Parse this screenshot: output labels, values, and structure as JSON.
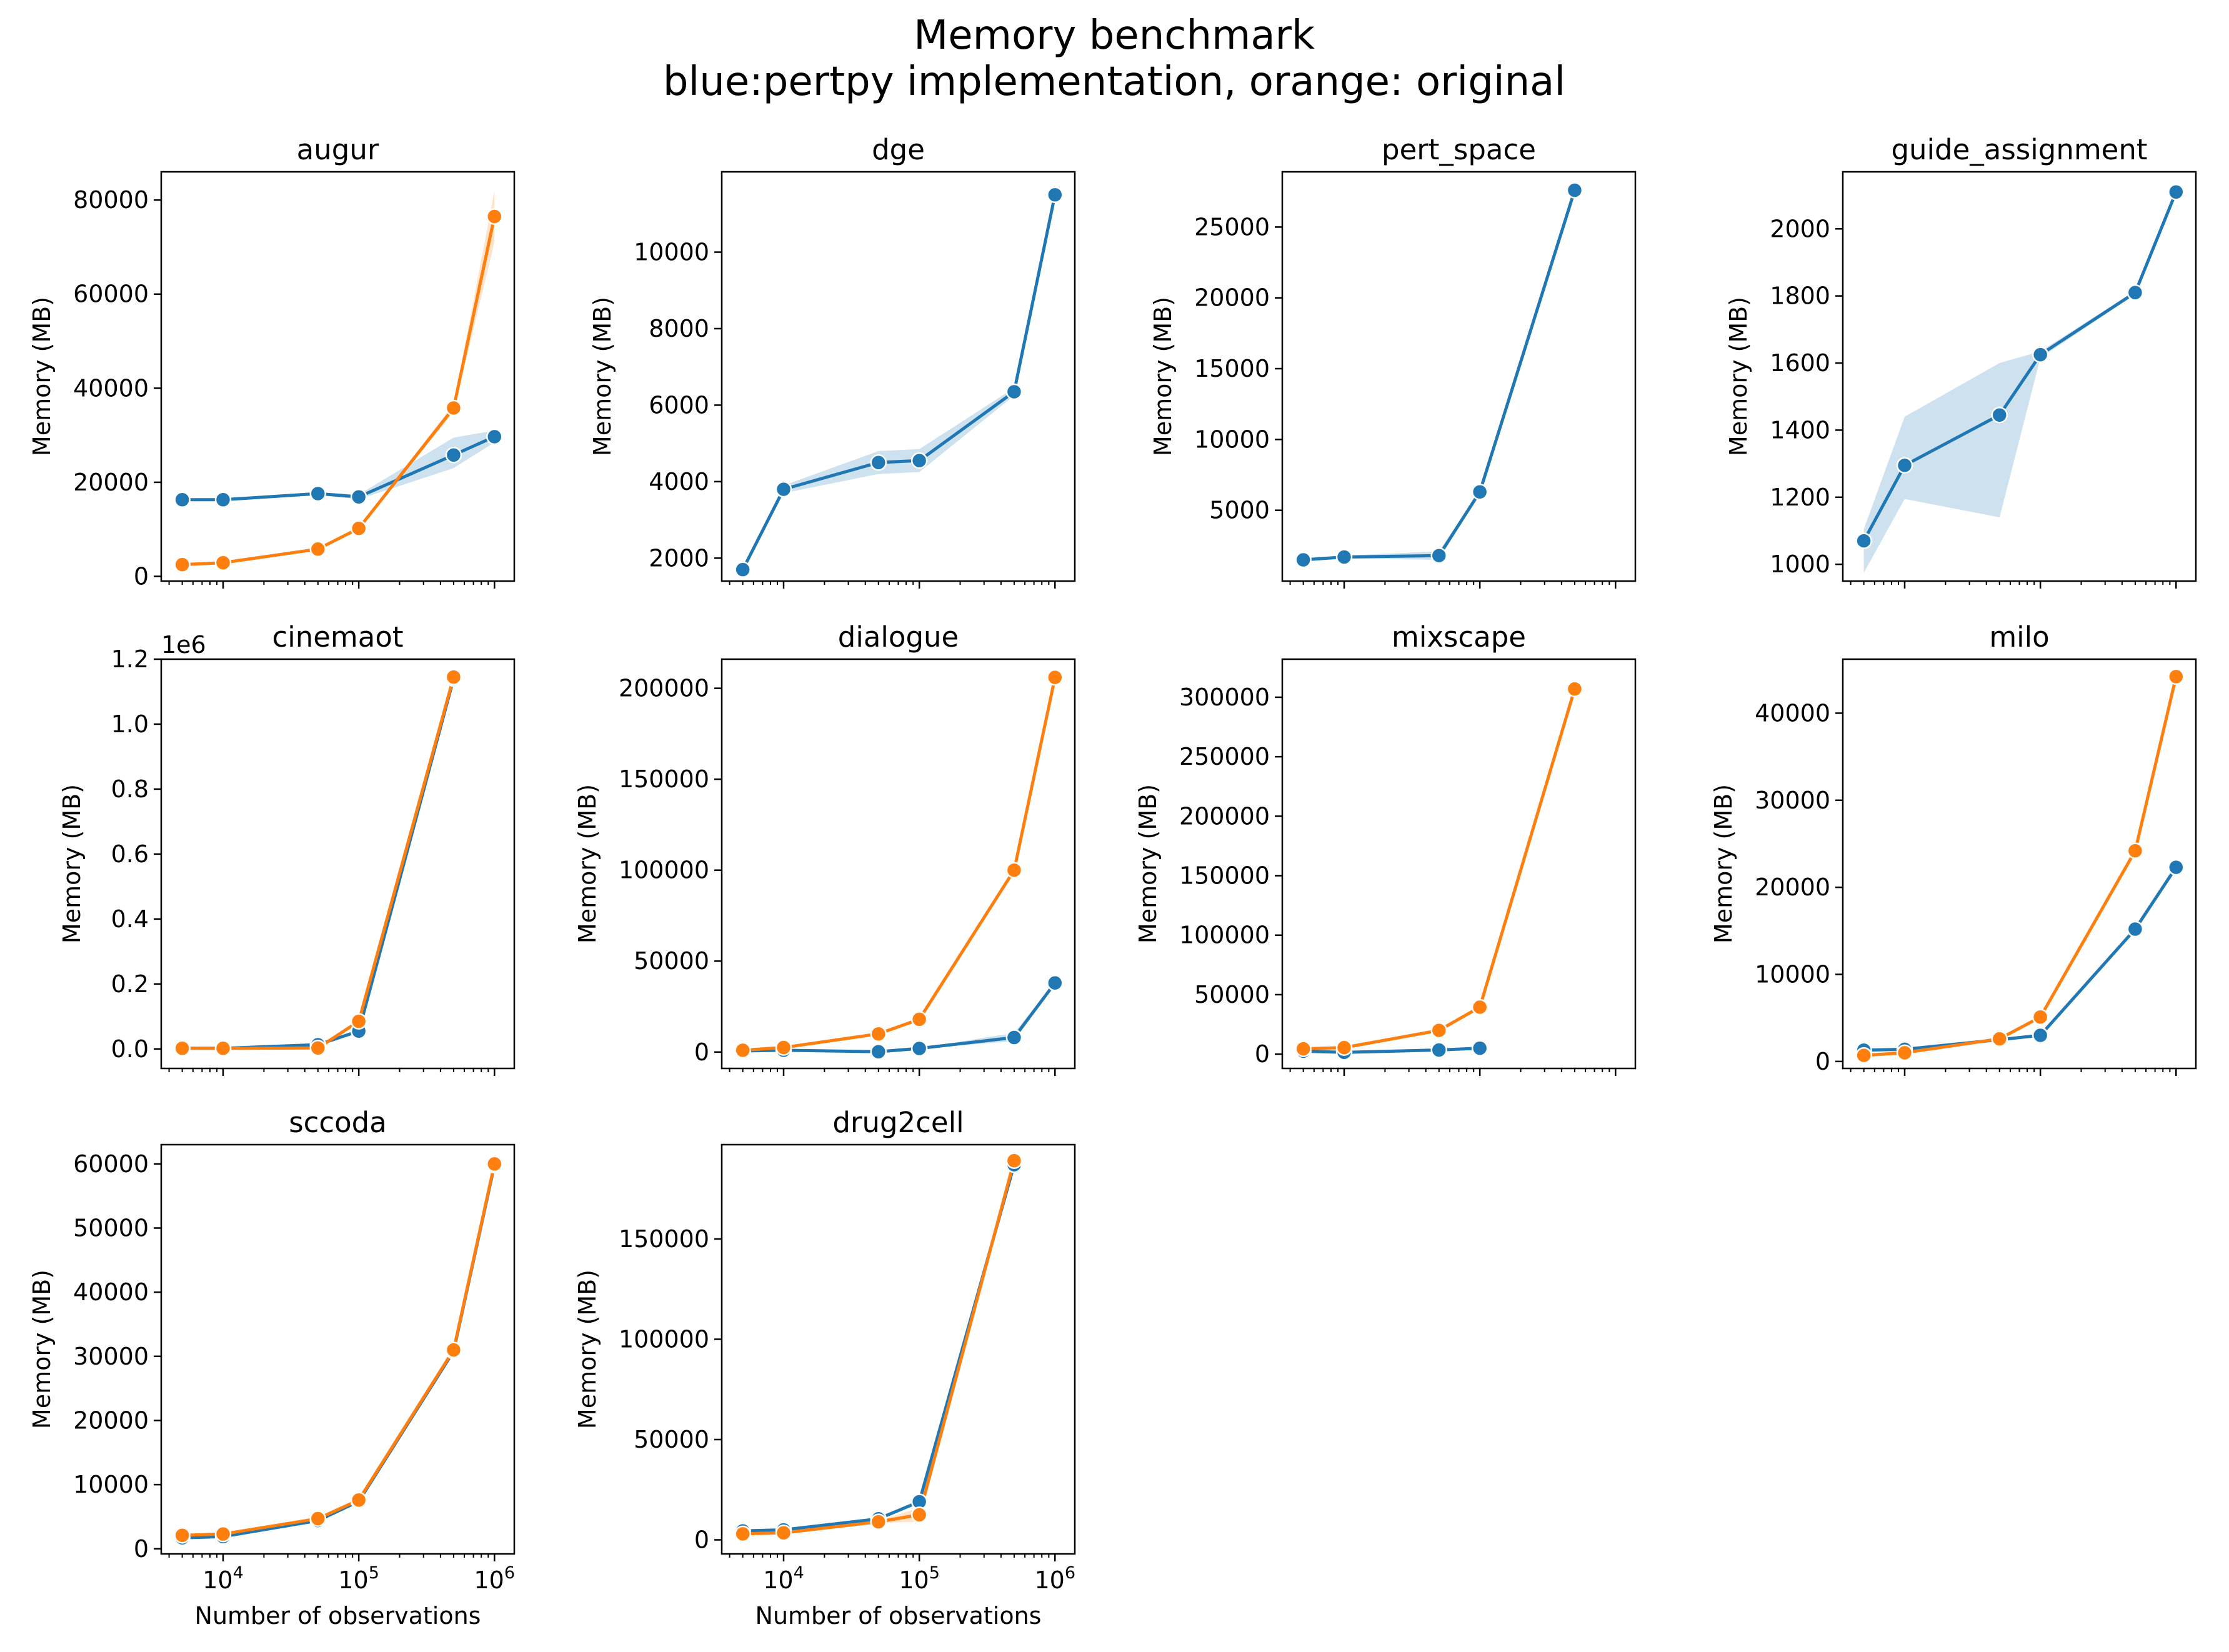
{
  "figure": {
    "title_line1": "Memory benchmark",
    "title_line2": "blue:pertpy implementation, orange: original"
  },
  "colors": {
    "blue": "#1f77b4",
    "orange": "#ff7f0e"
  },
  "chart_data": [
    {
      "type": "line",
      "title": "augur",
      "xlabel": "",
      "ylabel": "Memory (MB)",
      "xscale": "log",
      "xlim": [
        3500,
        1400000
      ],
      "ylim": [
        -1000,
        86000
      ],
      "yticks": [
        0,
        20000,
        40000,
        60000,
        80000
      ],
      "ytick_labels": [
        "0",
        "20000",
        "40000",
        "60000",
        "80000"
      ],
      "x_tick_labels_visible": false,
      "offset_text": "",
      "series": [
        {
          "color": "blue",
          "x": [
            5000,
            10000,
            50000,
            100000,
            500000,
            1000000
          ],
          "y": [
            16300,
            16300,
            17600,
            16900,
            25800,
            29700
          ],
          "band_low": [
            16000,
            16000,
            17300,
            16400,
            23000,
            28500
          ],
          "band_high": [
            16600,
            16600,
            17900,
            17400,
            29500,
            31000
          ]
        },
        {
          "color": "orange",
          "x": [
            5000,
            10000,
            50000,
            100000,
            500000,
            1000000
          ],
          "y": [
            2500,
            2900,
            5800,
            10200,
            35800,
            76500
          ],
          "band_low": [
            2400,
            2800,
            5600,
            9900,
            35000,
            71000
          ],
          "band_high": [
            2600,
            3000,
            6000,
            10500,
            36600,
            82000
          ]
        }
      ]
    },
    {
      "type": "line",
      "title": "dge",
      "xlabel": "",
      "ylabel": "Memory (MB)",
      "xscale": "log",
      "xlim": [
        3500,
        1400000
      ],
      "ylim": [
        1400,
        12100
      ],
      "yticks": [
        2000,
        4000,
        6000,
        8000,
        10000
      ],
      "ytick_labels": [
        "2000",
        "4000",
        "6000",
        "8000",
        "10000"
      ],
      "x_tick_labels_visible": false,
      "offset_text": "",
      "series": [
        {
          "color": "blue",
          "x": [
            5000,
            10000,
            50000,
            100000,
            500000,
            1000000
          ],
          "y": [
            1700,
            3800,
            4500,
            4550,
            6350,
            11500
          ],
          "band_low": [
            1650,
            3700,
            4200,
            4250,
            6250,
            11450
          ],
          "band_high": [
            1750,
            3900,
            4800,
            4850,
            6450,
            11550
          ]
        }
      ]
    },
    {
      "type": "line",
      "title": "pert_space",
      "xlabel": "",
      "ylabel": "Memory (MB)",
      "xscale": "log",
      "xlim": [
        3500,
        1400000
      ],
      "ylim": [
        0,
        28900
      ],
      "yticks": [
        5000,
        10000,
        15000,
        20000,
        25000
      ],
      "ytick_labels": [
        "5000",
        "10000",
        "15000",
        "20000",
        "25000"
      ],
      "x_tick_labels_visible": false,
      "offset_text": "",
      "series": [
        {
          "color": "blue",
          "x": [
            5000,
            10000,
            50000,
            100000,
            500000
          ],
          "y": [
            1500,
            1700,
            1800,
            6300,
            27600
          ],
          "band_low": [
            1450,
            1600,
            1500,
            6200,
            27500
          ],
          "band_high": [
            1550,
            1800,
            2100,
            6400,
            27700
          ]
        }
      ]
    },
    {
      "type": "line",
      "title": "guide_assignment",
      "xlabel": "",
      "ylabel": "Memory (MB)",
      "xscale": "log",
      "xlim": [
        3500,
        1400000
      ],
      "ylim": [
        950,
        2170
      ],
      "yticks": [
        1000,
        1200,
        1400,
        1600,
        1800,
        2000
      ],
      "ytick_labels": [
        "1000",
        "1200",
        "1400",
        "1600",
        "1800",
        "2000"
      ],
      "x_tick_labels_visible": false,
      "offset_text": "",
      "series": [
        {
          "color": "blue",
          "x": [
            5000,
            10000,
            50000,
            100000,
            500000,
            1000000
          ],
          "y": [
            1070,
            1295,
            1445,
            1625,
            1810,
            2110
          ],
          "band_low": [
            975,
            1195,
            1140,
            1615,
            1805,
            2105
          ],
          "band_high": [
            1105,
            1440,
            1600,
            1635,
            1815,
            2115
          ]
        }
      ]
    },
    {
      "type": "line",
      "title": "cinemaot",
      "xlabel": "",
      "ylabel": "Memory (MB)",
      "xscale": "log",
      "xlim": [
        3500,
        1400000
      ],
      "ylim": [
        -0.06,
        1.2
      ],
      "yticks": [
        0.0,
        0.2,
        0.4,
        0.6,
        0.8,
        1.0,
        1.2
      ],
      "ytick_labels": [
        "0.0",
        "0.2",
        "0.4",
        "0.6",
        "0.8",
        "1.0",
        "1.2"
      ],
      "x_tick_labels_visible": false,
      "offset_text": "1e6",
      "series": [
        {
          "color": "blue",
          "x": [
            5000,
            10000,
            50000,
            100000,
            500000
          ],
          "y": [
            0.002,
            0.002,
            0.013,
            0.055,
            1.14
          ],
          "band_low": [
            0.001,
            0.001,
            0.01,
            0.05,
            1.135
          ],
          "band_high": [
            0.003,
            0.003,
            0.016,
            0.06,
            1.145
          ]
        },
        {
          "color": "orange",
          "x": [
            5000,
            10000,
            50000,
            100000,
            500000
          ],
          "y": [
            0.002,
            0.002,
            0.003,
            0.085,
            1.145
          ],
          "band_low": [
            0.001,
            0.001,
            0.002,
            0.08,
            1.14
          ],
          "band_high": [
            0.003,
            0.003,
            0.004,
            0.09,
            1.15
          ]
        }
      ]
    },
    {
      "type": "line",
      "title": "dialogue",
      "xlabel": "",
      "ylabel": "Memory (MB)",
      "xscale": "log",
      "xlim": [
        3500,
        1400000
      ],
      "ylim": [
        -9000,
        216000
      ],
      "yticks": [
        0,
        50000,
        100000,
        150000,
        200000
      ],
      "ytick_labels": [
        "0",
        "50000",
        "100000",
        "150000",
        "200000"
      ],
      "x_tick_labels_visible": false,
      "offset_text": "",
      "series": [
        {
          "color": "blue",
          "x": [
            5000,
            10000,
            50000,
            100000,
            500000,
            1000000
          ],
          "y": [
            600,
            1000,
            200,
            2000,
            8000,
            38000
          ],
          "band_low": [
            400,
            800,
            100,
            1800,
            6000,
            37500
          ],
          "band_high": [
            800,
            1200,
            300,
            2200,
            10500,
            38500
          ]
        },
        {
          "color": "orange",
          "x": [
            5000,
            10000,
            50000,
            100000,
            500000,
            1000000
          ],
          "y": [
            1000,
            2500,
            10000,
            18000,
            100000,
            206000
          ],
          "band_low": [
            900,
            2300,
            9700,
            17700,
            99500,
            205500
          ],
          "band_high": [
            1100,
            2700,
            10300,
            18300,
            100500,
            206500
          ]
        }
      ]
    },
    {
      "type": "line",
      "title": "mixscape",
      "xlabel": "",
      "ylabel": "Memory (MB)",
      "xscale": "log",
      "xlim": [
        3500,
        1400000
      ],
      "ylim": [
        -12000,
        332000
      ],
      "yticks": [
        0,
        50000,
        100000,
        150000,
        200000,
        250000,
        300000
      ],
      "ytick_labels": [
        "0",
        "50000",
        "100000",
        "150000",
        "200000",
        "250000",
        "300000"
      ],
      "x_tick_labels_visible": false,
      "offset_text": "",
      "series": [
        {
          "color": "blue",
          "x": [
            5000,
            10000,
            50000,
            100000
          ],
          "y": [
            2500,
            1500,
            3500,
            5000
          ],
          "band_low": [
            2300,
            1300,
            3300,
            4800
          ],
          "band_high": [
            2700,
            1700,
            3700,
            5200
          ]
        },
        {
          "color": "orange",
          "x": [
            5000,
            10000,
            50000,
            100000,
            500000
          ],
          "y": [
            4500,
            5500,
            20000,
            39500,
            307000
          ],
          "band_low": [
            4300,
            5300,
            19700,
            39200,
            303000
          ],
          "band_high": [
            4700,
            5700,
            20300,
            39800,
            311000
          ]
        }
      ]
    },
    {
      "type": "line",
      "title": "milo",
      "xlabel": "",
      "ylabel": "Memory (MB)",
      "xscale": "log",
      "xlim": [
        3500,
        1400000
      ],
      "ylim": [
        -800,
        46200
      ],
      "yticks": [
        0,
        10000,
        20000,
        30000,
        40000
      ],
      "ytick_labels": [
        "0",
        "10000",
        "20000",
        "30000",
        "40000"
      ],
      "x_tick_labels_visible": false,
      "offset_text": "",
      "series": [
        {
          "color": "blue",
          "x": [
            5000,
            10000,
            50000,
            100000,
            500000,
            1000000
          ],
          "y": [
            1300,
            1400,
            2500,
            3000,
            15200,
            22300
          ],
          "band_low": [
            1250,
            1350,
            2450,
            2950,
            15100,
            22200
          ],
          "band_high": [
            1350,
            1450,
            2550,
            3050,
            15300,
            22400
          ]
        },
        {
          "color": "orange",
          "x": [
            5000,
            10000,
            50000,
            100000,
            500000,
            1000000
          ],
          "y": [
            700,
            1000,
            2600,
            5100,
            24200,
            44200
          ],
          "band_low": [
            650,
            950,
            2550,
            5050,
            24100,
            44100
          ],
          "band_high": [
            750,
            1050,
            2650,
            5150,
            24300,
            44300
          ]
        }
      ]
    },
    {
      "type": "line",
      "title": "sccoda",
      "xlabel": "Number of observations",
      "ylabel": "Memory (MB)",
      "xscale": "log",
      "xlim": [
        3500,
        1400000
      ],
      "ylim": [
        -800,
        63000
      ],
      "yticks": [
        0,
        10000,
        20000,
        30000,
        40000,
        50000,
        60000
      ],
      "ytick_labels": [
        "0",
        "10000",
        "20000",
        "30000",
        "40000",
        "50000",
        "60000"
      ],
      "xticks": [
        10000,
        100000,
        1000000
      ],
      "xtick_bases": [
        "10",
        "10",
        "10"
      ],
      "xtick_exps": [
        "4",
        "5",
        "6"
      ],
      "x_tick_labels_visible": true,
      "offset_text": "",
      "series": [
        {
          "color": "blue",
          "x": [
            5000,
            10000,
            50000,
            100000,
            500000,
            1000000
          ],
          "y": [
            1700,
            1900,
            4400,
            7400,
            30800,
            59800
          ],
          "band_low": [
            1600,
            1800,
            4300,
            7300,
            30600,
            59700
          ],
          "band_high": [
            1800,
            2000,
            4500,
            7500,
            31000,
            59900
          ]
        },
        {
          "color": "orange",
          "x": [
            5000,
            10000,
            50000,
            100000,
            500000,
            1000000
          ],
          "y": [
            2100,
            2300,
            4700,
            7600,
            31000,
            60000
          ],
          "band_low": [
            2000,
            2200,
            4600,
            7500,
            30800,
            59900
          ],
          "band_high": [
            2200,
            2400,
            4800,
            7700,
            31200,
            60100
          ]
        }
      ]
    },
    {
      "type": "line",
      "title": "drug2cell",
      "xlabel": "Number of observations",
      "ylabel": "Memory (MB)",
      "xscale": "log",
      "xlim": [
        3500,
        1400000
      ],
      "ylim": [
        -7000,
        197000
      ],
      "yticks": [
        0,
        50000,
        100000,
        150000
      ],
      "ytick_labels": [
        "0",
        "50000",
        "100000",
        "150000"
      ],
      "xticks": [
        10000,
        100000,
        1000000
      ],
      "xtick_bases": [
        "10",
        "10",
        "10"
      ],
      "xtick_exps": [
        "4",
        "5",
        "6"
      ],
      "x_tick_labels_visible": true,
      "offset_text": "",
      "series": [
        {
          "color": "blue",
          "x": [
            5000,
            10000,
            50000,
            100000,
            500000
          ],
          "y": [
            4500,
            5000,
            10500,
            19000,
            187000
          ],
          "band_low": [
            4300,
            4800,
            10200,
            18500,
            185000
          ],
          "band_high": [
            4700,
            5200,
            10800,
            19500,
            189000
          ]
        },
        {
          "color": "orange",
          "x": [
            5000,
            10000,
            50000,
            100000,
            500000
          ],
          "y": [
            3000,
            3500,
            9000,
            12500,
            189000
          ],
          "band_low": [
            2800,
            3300,
            8500,
            9000,
            187500
          ],
          "band_high": [
            3200,
            3700,
            9500,
            16000,
            190500
          ]
        }
      ]
    }
  ]
}
